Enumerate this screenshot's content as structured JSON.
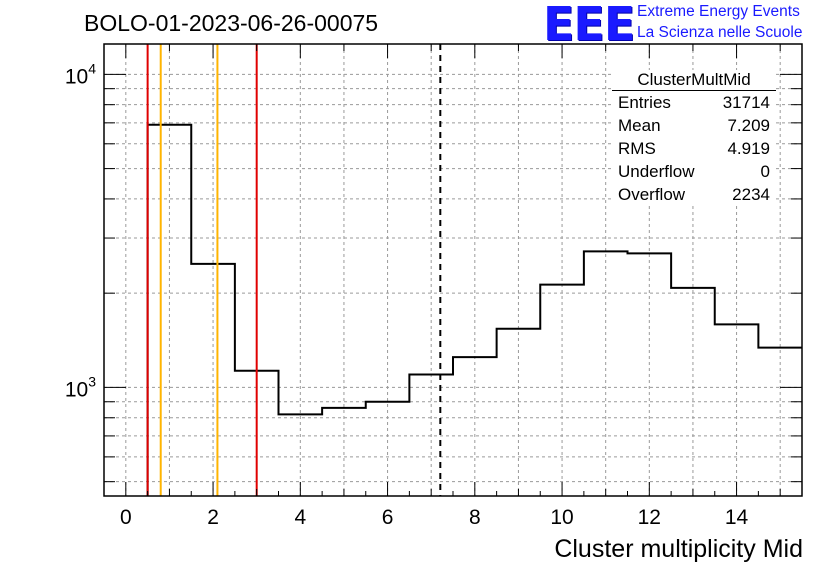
{
  "title": "BOLO-01-2023-06-26-00075",
  "logo": {
    "text": "EEE",
    "line1": "Extreme Energy Events",
    "line2": "La Scienza nelle Scuole"
  },
  "stats": {
    "name": "ClusterMultMid",
    "rows": [
      {
        "label": "Entries",
        "value": "31714"
      },
      {
        "label": "Mean",
        "value": "7.209"
      },
      {
        "label": "RMS",
        "value": "4.919"
      },
      {
        "label": "Underflow",
        "value": "0"
      },
      {
        "label": "Overflow",
        "value": "2234"
      }
    ]
  },
  "chart_data": {
    "type": "histogram",
    "xlabel": "Cluster multiplicity Mid",
    "ylabel": "",
    "xlim": [
      -0.5,
      15.5
    ],
    "ylim": [
      450,
      12500
    ],
    "yscale": "log",
    "grid": true,
    "x_ticks": [
      0,
      2,
      4,
      6,
      8,
      10,
      12,
      14
    ],
    "y_ticks": [
      {
        "value": 1000,
        "base": "10",
        "exp": "3"
      },
      {
        "value": 10000,
        "base": "10",
        "exp": "4"
      }
    ],
    "bins": [
      {
        "lo": 0.5,
        "hi": 1.5,
        "value": 6900
      },
      {
        "lo": 1.5,
        "hi": 2.5,
        "value": 2480
      },
      {
        "lo": 2.5,
        "hi": 3.5,
        "value": 1130
      },
      {
        "lo": 3.5,
        "hi": 4.5,
        "value": 820
      },
      {
        "lo": 4.5,
        "hi": 5.5,
        "value": 860
      },
      {
        "lo": 5.5,
        "hi": 6.5,
        "value": 900
      },
      {
        "lo": 6.5,
        "hi": 7.5,
        "value": 1100
      },
      {
        "lo": 7.5,
        "hi": 8.5,
        "value": 1250
      },
      {
        "lo": 8.5,
        "hi": 9.5,
        "value": 1540
      },
      {
        "lo": 9.5,
        "hi": 10.5,
        "value": 2130
      },
      {
        "lo": 10.5,
        "hi": 11.5,
        "value": 2720
      },
      {
        "lo": 11.5,
        "hi": 12.5,
        "value": 2680
      },
      {
        "lo": 12.5,
        "hi": 13.5,
        "value": 2080
      },
      {
        "lo": 13.5,
        "hi": 14.5,
        "value": 1590
      },
      {
        "lo": 14.5,
        "hi": 15.5,
        "value": 1340
      }
    ],
    "vlines": [
      {
        "x": 0.5,
        "color": "#e00000",
        "style": "solid"
      },
      {
        "x": 0.8,
        "color": "#ffb400",
        "style": "solid"
      },
      {
        "x": 2.1,
        "color": "#ffb400",
        "style": "solid"
      },
      {
        "x": 3.0,
        "color": "#e00000",
        "style": "solid"
      },
      {
        "x": 7.209,
        "color": "#000000",
        "style": "dashed"
      }
    ]
  }
}
